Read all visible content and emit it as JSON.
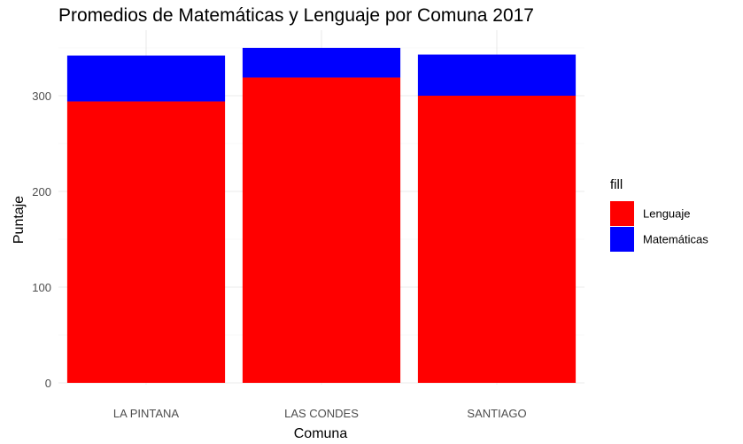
{
  "chart_data": {
    "type": "bar",
    "stacked": true,
    "title": "Promedios de Matemáticas y Lenguaje por Comuna 2017",
    "xlabel": "Comuna",
    "ylabel": "Puntaje",
    "categories": [
      "LA PINTANA",
      "LAS CONDES",
      "SANTIAGO"
    ],
    "series": [
      {
        "name": "Lenguaje",
        "color": "#ff0000",
        "values": [
          294,
          319,
          300
        ]
      },
      {
        "name": "Matemáticas",
        "color": "#0000ff",
        "values": [
          48,
          31,
          43
        ]
      }
    ],
    "ylim": [
      0,
      350
    ],
    "yticks": [
      0,
      100,
      200,
      300
    ],
    "grid": true,
    "legend": {
      "title": "fill",
      "position": "right"
    }
  }
}
